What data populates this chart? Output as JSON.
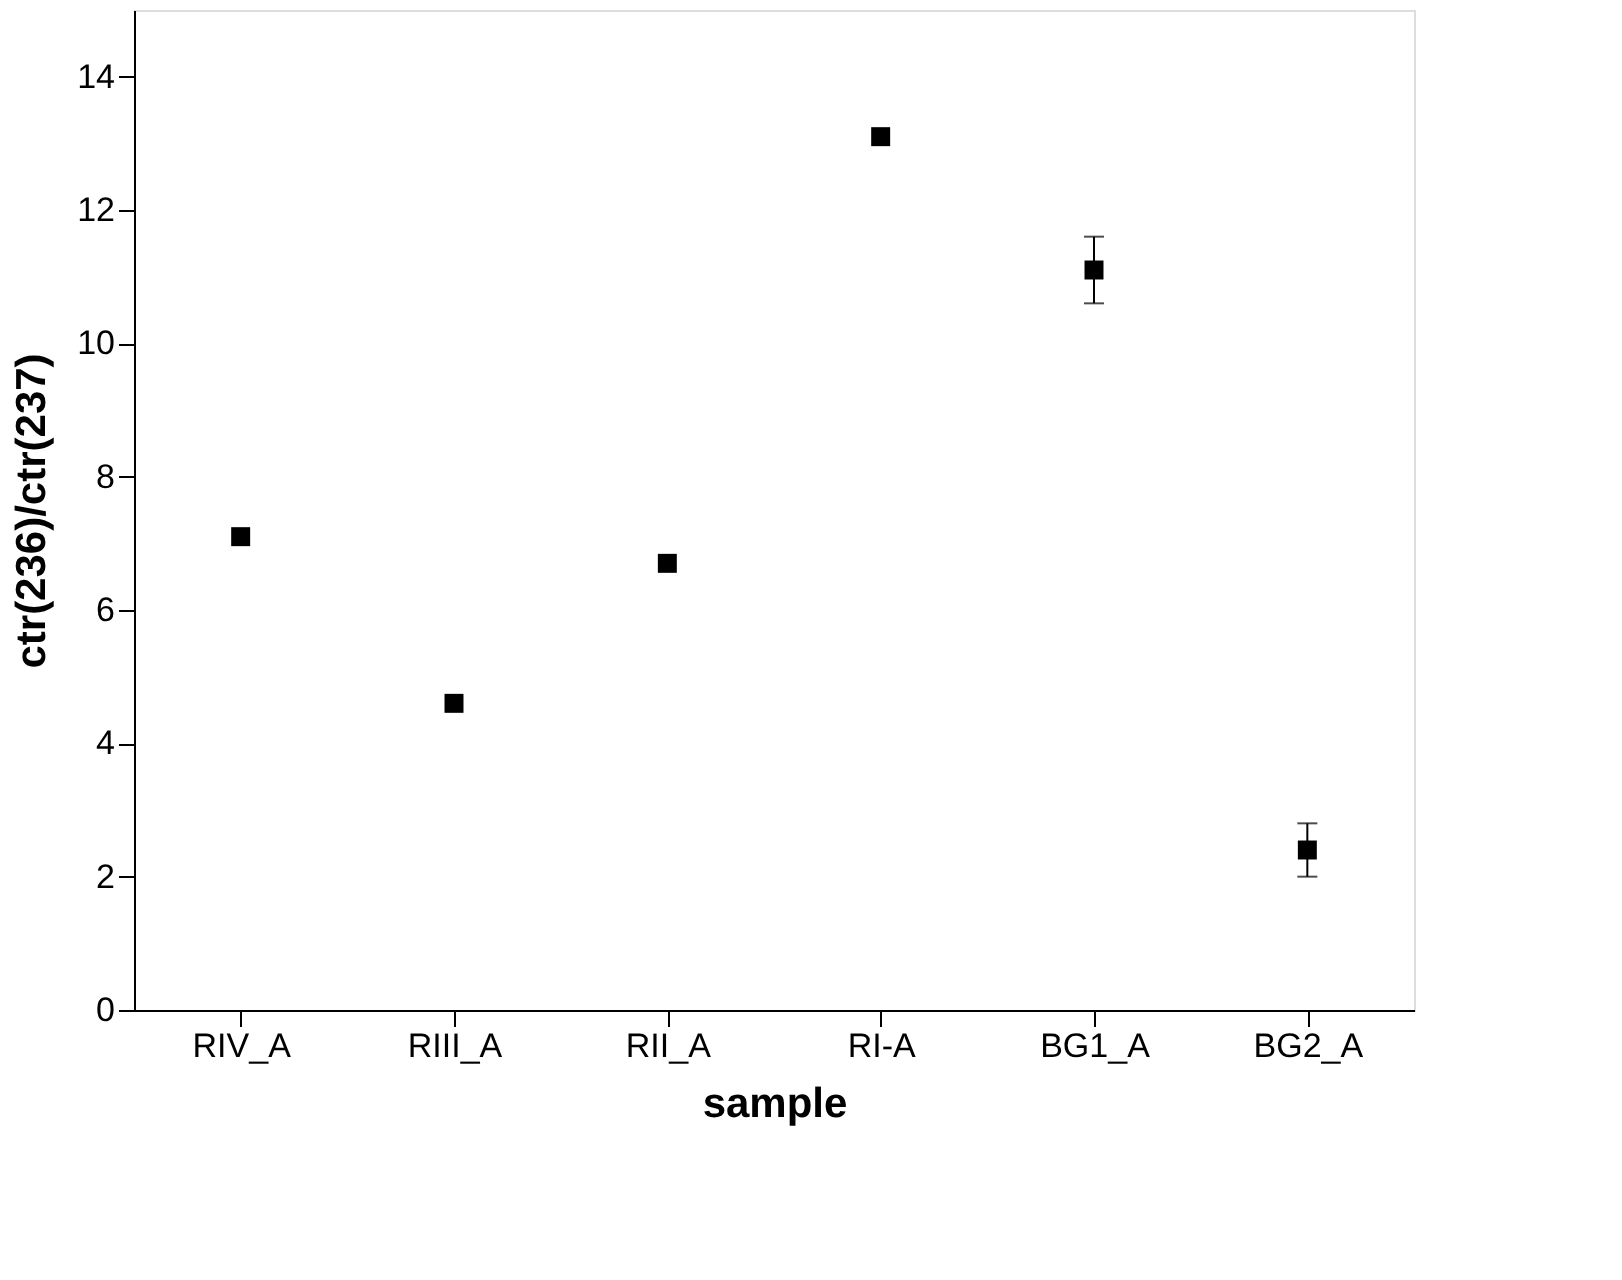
{
  "chart_data": {
    "type": "scatter",
    "xlabel": "sample",
    "ylabel": "ctr(236)/ctr(237)",
    "categories": [
      "RIV_A",
      "RIII_A",
      "RII_A",
      "RI-A",
      "BG1_A",
      "BG2_A"
    ],
    "values": [
      7.1,
      4.6,
      6.7,
      13.1,
      11.1,
      2.4
    ],
    "errors": [
      null,
      null,
      null,
      null,
      0.5,
      0.4
    ],
    "color": "#000000",
    "marker": "square",
    "ylim": [
      0,
      15
    ],
    "yticks": [
      0,
      2,
      4,
      6,
      8,
      10,
      12,
      14
    ],
    "grid": false,
    "legend": false
  }
}
